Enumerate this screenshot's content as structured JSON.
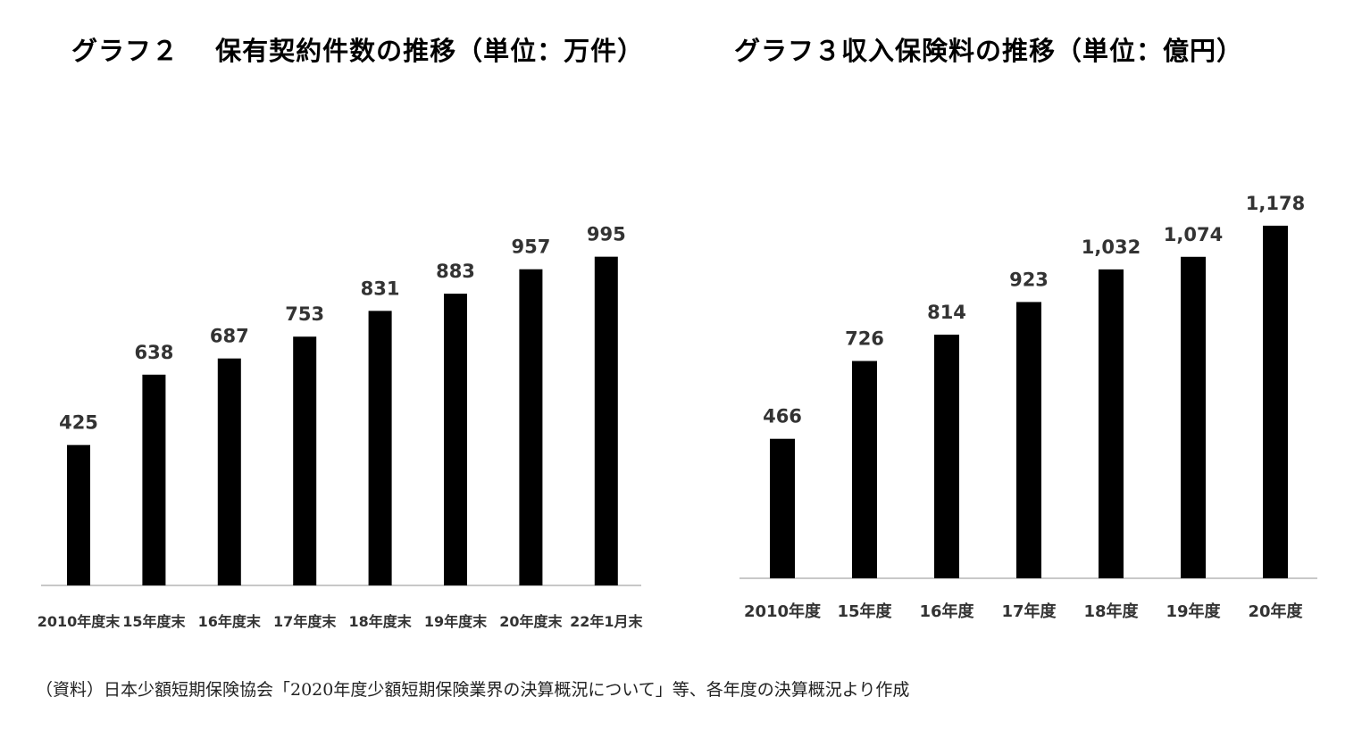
{
  "chart_data": [
    {
      "type": "bar",
      "title": "グラフ２　 保有契約件数の推移（単位：万件）",
      "categories": [
        "2010年度末",
        "15年度末",
        "16年度末",
        "17年度末",
        "18年度末",
        "19年度末",
        "20年度末",
        "22年1月末"
      ],
      "values": [
        425,
        638,
        687,
        753,
        831,
        883,
        957,
        995
      ],
      "value_labels": [
        "425",
        "638",
        "687",
        "753",
        "831",
        "883",
        "957",
        "995"
      ],
      "bar_color": "#000000",
      "grid": false,
      "legend": "none"
    },
    {
      "type": "bar",
      "title": "グラフ３収入保険料の推移（単位：億円）",
      "categories": [
        "2010年度",
        "15年度",
        "16年度",
        "17年度",
        "18年度",
        "19年度",
        "20年度"
      ],
      "values": [
        466,
        726,
        814,
        923,
        1032,
        1074,
        1178
      ],
      "value_labels": [
        "466",
        "726",
        "814",
        "923",
        "1,032",
        "1,074",
        "1,178"
      ],
      "bar_color": "#000000",
      "grid": false,
      "legend": "none"
    }
  ],
  "source_note": "（資料）日本少額短期保険協会「2020年度少額短期保険業界の決算概況について」等、各年度の決算概況より作成"
}
